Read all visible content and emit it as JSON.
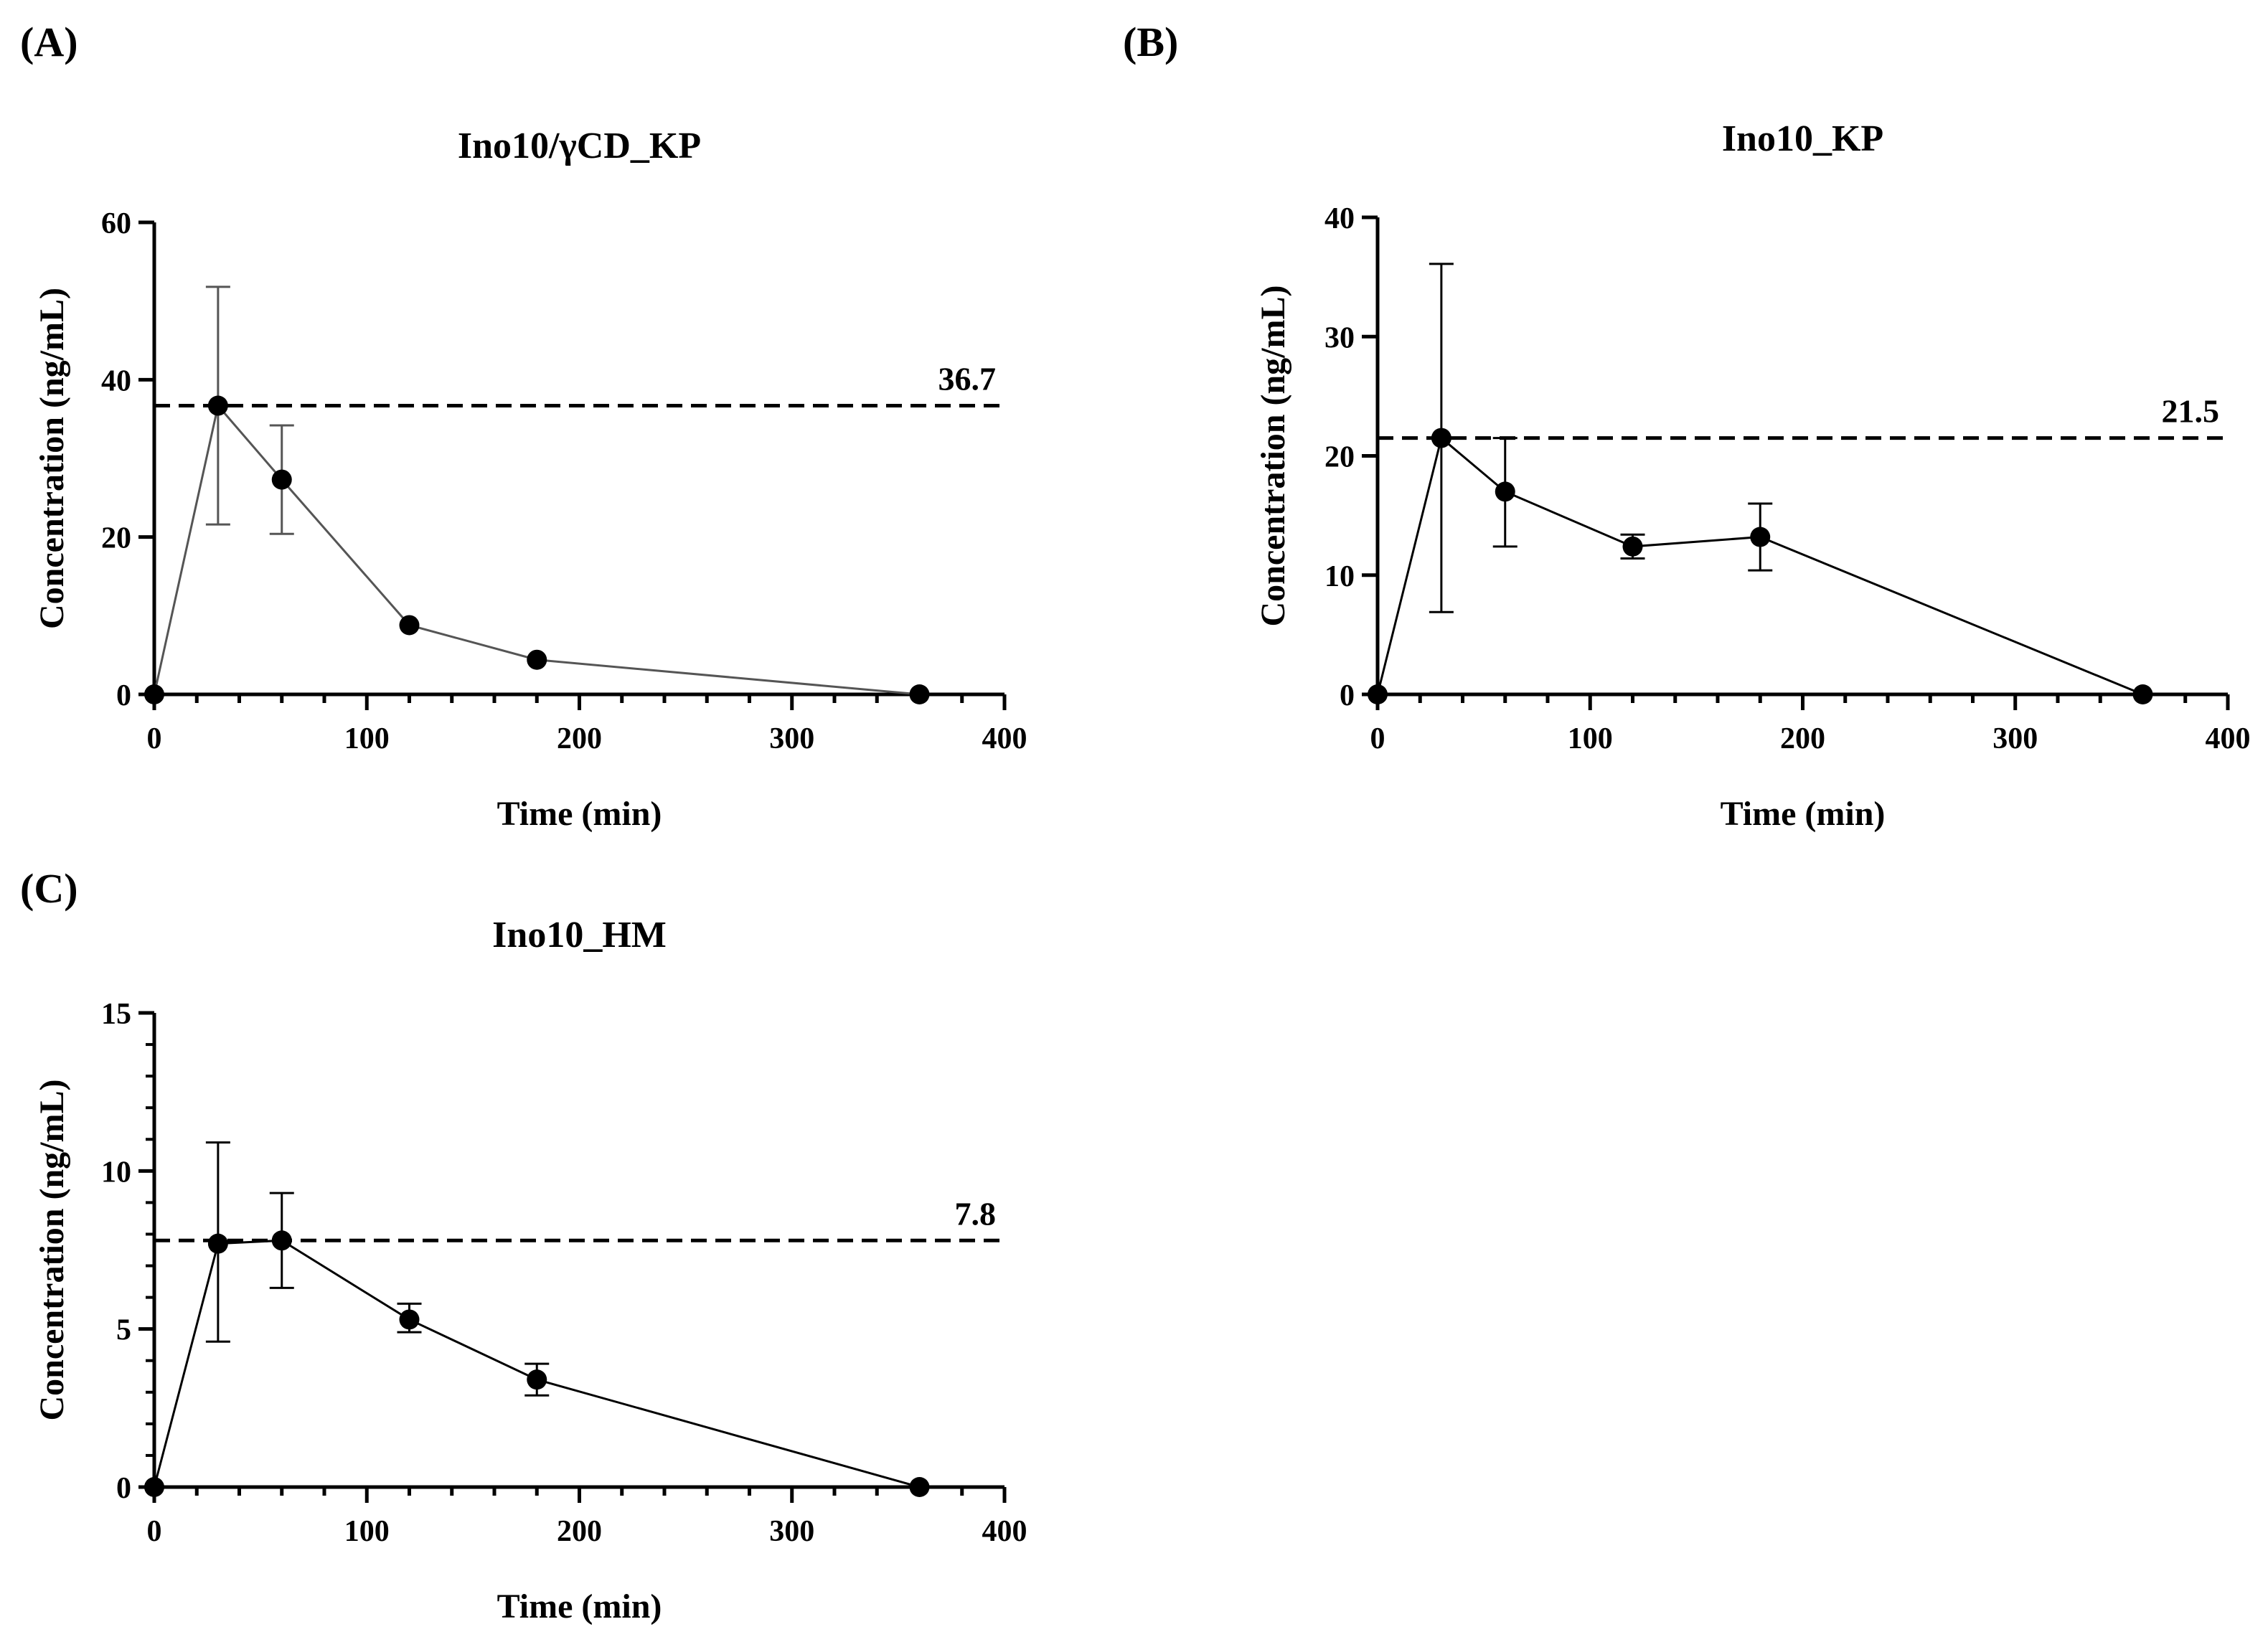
{
  "chart_data": [
    {
      "panel": "(A)",
      "type": "line",
      "title": "Ino10/γCD_KP",
      "xlabel": "Time (min)",
      "ylabel": "Concentration (ng/mL)",
      "xlim": [
        0,
        400
      ],
      "ylim": [
        0,
        60
      ],
      "xticks": [
        0,
        100,
        200,
        300,
        400
      ],
      "yticks": [
        0,
        20,
        40,
        60
      ],
      "series": [
        {
          "name": "Ino10/γCD_KP",
          "x": [
            0,
            30,
            60,
            120,
            180,
            360
          ],
          "y": [
            0,
            36.7,
            27.3,
            8.8,
            4.4,
            0
          ],
          "error_high": [
            0,
            51.8,
            34.2,
            8.8,
            4.4,
            0
          ],
          "error_low": [
            0,
            21.6,
            20.4,
            8.8,
            4.4,
            0
          ]
        }
      ],
      "reference_line": {
        "value": 36.7,
        "label": "36.7"
      },
      "line_color": "#555555"
    },
    {
      "panel": "(B)",
      "type": "line",
      "title": "Ino10_KP",
      "xlabel": "Time (min)",
      "ylabel": "Concentration (ng/mL)",
      "xlim": [
        0,
        400
      ],
      "ylim": [
        0,
        40
      ],
      "xticks": [
        0,
        100,
        200,
        300,
        400
      ],
      "yticks": [
        0,
        10,
        20,
        30,
        40
      ],
      "series": [
        {
          "name": "Ino10_KP",
          "x": [
            0,
            30,
            60,
            120,
            180,
            360
          ],
          "y": [
            0,
            21.5,
            17.0,
            12.4,
            13.2,
            0
          ],
          "error_high": [
            0,
            36.1,
            21.5,
            13.4,
            16.0,
            0
          ],
          "error_low": [
            0,
            6.9,
            12.4,
            11.4,
            10.4,
            0
          ]
        }
      ],
      "reference_line": {
        "value": 21.5,
        "label": "21.5"
      },
      "line_color": "#000000"
    },
    {
      "panel": "(C)",
      "type": "line",
      "title": "Ino10_HM",
      "xlabel": "Time (min)",
      "ylabel": "Concentration (ng/mL)",
      "xlim": [
        0,
        400
      ],
      "ylim": [
        0,
        15
      ],
      "xticks": [
        0,
        100,
        200,
        300,
        400
      ],
      "yticks": [
        0,
        5,
        10,
        15
      ],
      "series": [
        {
          "name": "Ino10_HM",
          "x": [
            0,
            30,
            60,
            120,
            180,
            360
          ],
          "y": [
            0,
            7.7,
            7.8,
            5.3,
            3.4,
            0
          ],
          "error_high": [
            0,
            10.9,
            9.3,
            5.8,
            3.9,
            0
          ],
          "error_low": [
            0,
            4.6,
            6.3,
            4.9,
            2.9,
            0
          ]
        }
      ],
      "reference_line": {
        "value": 7.8,
        "label": "7.8"
      },
      "line_color": "#000000"
    }
  ]
}
